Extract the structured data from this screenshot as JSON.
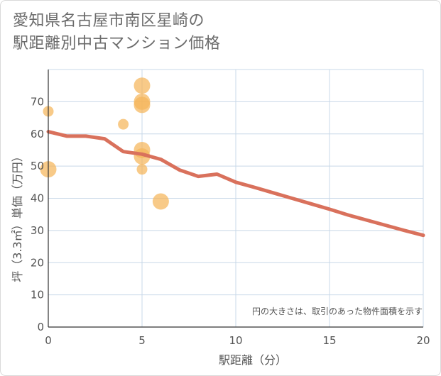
{
  "title_line1": "愛知県名古屋市南区星崎の",
  "title_line2": "駅距離別中古マンション価格",
  "chart_data": {
    "type": "scatter",
    "title": "愛知県名古屋市南区星崎の駅距離別中古マンション価格",
    "xlabel": "駅距離（分）",
    "ylabel": "坪（3.3㎡）単価（万円）",
    "xlim": [
      0,
      20
    ],
    "ylim": [
      0,
      80
    ],
    "x_ticks": [
      "0",
      "5",
      "10",
      "15",
      "20"
    ],
    "y_ticks": [
      "0",
      "10",
      "20",
      "30",
      "40",
      "50",
      "60",
      "70"
    ],
    "grid": true,
    "note": "円の大きさは、取引のあった物件面積を示す",
    "points": [
      {
        "x": 0,
        "y": 67,
        "size": 1
      },
      {
        "x": 0,
        "y": 49,
        "size": 2
      },
      {
        "x": 4,
        "y": 63,
        "size": 1
      },
      {
        "x": 5,
        "y": 75,
        "size": 2
      },
      {
        "x": 5,
        "y": 70,
        "size": 2
      },
      {
        "x": 5,
        "y": 69,
        "size": 2
      },
      {
        "x": 5,
        "y": 55,
        "size": 2
      },
      {
        "x": 5,
        "y": 53,
        "size": 2
      },
      {
        "x": 5,
        "y": 49,
        "size": 1
      },
      {
        "x": 6,
        "y": 39,
        "size": 2
      }
    ],
    "trend_line": {
      "x": [
        0,
        1,
        2,
        3,
        4,
        5,
        6,
        7,
        8,
        9,
        10,
        11,
        12,
        13,
        14,
        15,
        16,
        17,
        18,
        19,
        20
      ],
      "y": [
        60.7,
        59.3,
        59.3,
        58.5,
        54.5,
        53.7,
        52.1,
        48.8,
        46.8,
        47.5,
        45.0,
        43.4,
        41.7,
        40.0,
        38.3,
        36.6,
        34.8,
        33.2,
        31.6,
        30.0,
        28.5
      ]
    },
    "colors": {
      "bubble": "#f5b65a",
      "trend": "#d9715c",
      "grid": "#c8d8e8",
      "axis": "#333333"
    }
  }
}
